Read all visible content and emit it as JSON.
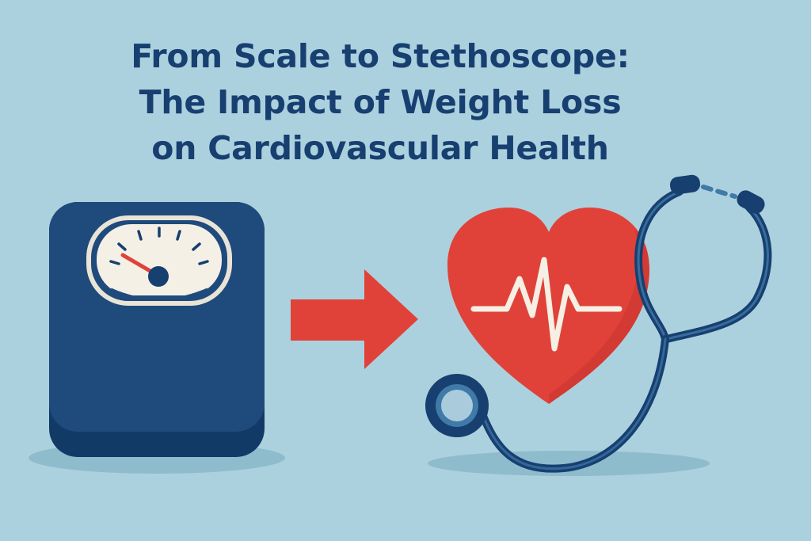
{
  "title": {
    "line1": "From Scale to Stethoscope:",
    "line2": "The Impact of Weight Loss",
    "line3": "on Cardiovascular Health"
  },
  "colors": {
    "background": "#acd1de",
    "navy": "#173f70",
    "scale_body": "#1f4a7c",
    "red": "#e0423a",
    "dial_face": "#f4f0e6",
    "shadow": "#8fbccd",
    "tube_light": "#3f7aa8"
  },
  "icons": {
    "scale": "bathroom-scale-icon",
    "arrow": "right-arrow-icon",
    "heart": "heart-icon",
    "pulse": "heartbeat-line-icon",
    "stethoscope": "stethoscope-icon"
  }
}
